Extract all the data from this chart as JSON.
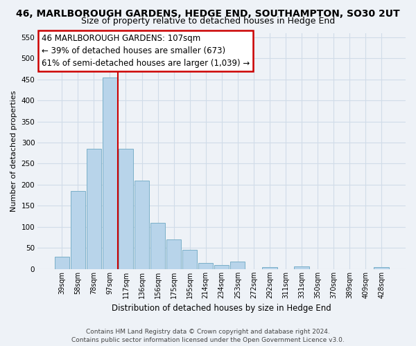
{
  "title": "46, MARLBOROUGH GARDENS, HEDGE END, SOUTHAMPTON, SO30 2UT",
  "subtitle": "Size of property relative to detached houses in Hedge End",
  "xlabel": "Distribution of detached houses by size in Hedge End",
  "ylabel": "Number of detached properties",
  "bar_labels": [
    "39sqm",
    "58sqm",
    "78sqm",
    "97sqm",
    "117sqm",
    "136sqm",
    "156sqm",
    "175sqm",
    "195sqm",
    "214sqm",
    "234sqm",
    "253sqm",
    "272sqm",
    "292sqm",
    "311sqm",
    "331sqm",
    "350sqm",
    "370sqm",
    "389sqm",
    "409sqm",
    "428sqm"
  ],
  "bar_heights": [
    30,
    185,
    285,
    455,
    285,
    210,
    110,
    70,
    45,
    14,
    9,
    18,
    0,
    5,
    0,
    6,
    0,
    0,
    0,
    0,
    4
  ],
  "bar_color": "#b8d4ea",
  "bar_edge_color": "#7aafc8",
  "vline_x": 3.5,
  "vline_color": "#cc0000",
  "annotation_text": "46 MARLBOROUGH GARDENS: 107sqm\n← 39% of detached houses are smaller (673)\n61% of semi-detached houses are larger (1,039) →",
  "annotation_box_edge_color": "#cc0000",
  "ylim_max": 560,
  "yticks": [
    0,
    50,
    100,
    150,
    200,
    250,
    300,
    350,
    400,
    450,
    500,
    550
  ],
  "grid_color": "#d0dce8",
  "background_color": "#eef2f7",
  "plot_bg_color": "#eef2f7",
  "title_fontsize": 10,
  "subtitle_fontsize": 9,
  "ylabel_fontsize": 8,
  "xlabel_fontsize": 8.5,
  "tick_fontsize": 7,
  "footer_line1": "Contains HM Land Registry data © Crown copyright and database right 2024.",
  "footer_line2": "Contains public sector information licensed under the Open Government Licence v3.0.",
  "footer_fontsize": 6.5,
  "ann_fontsize": 8.5
}
